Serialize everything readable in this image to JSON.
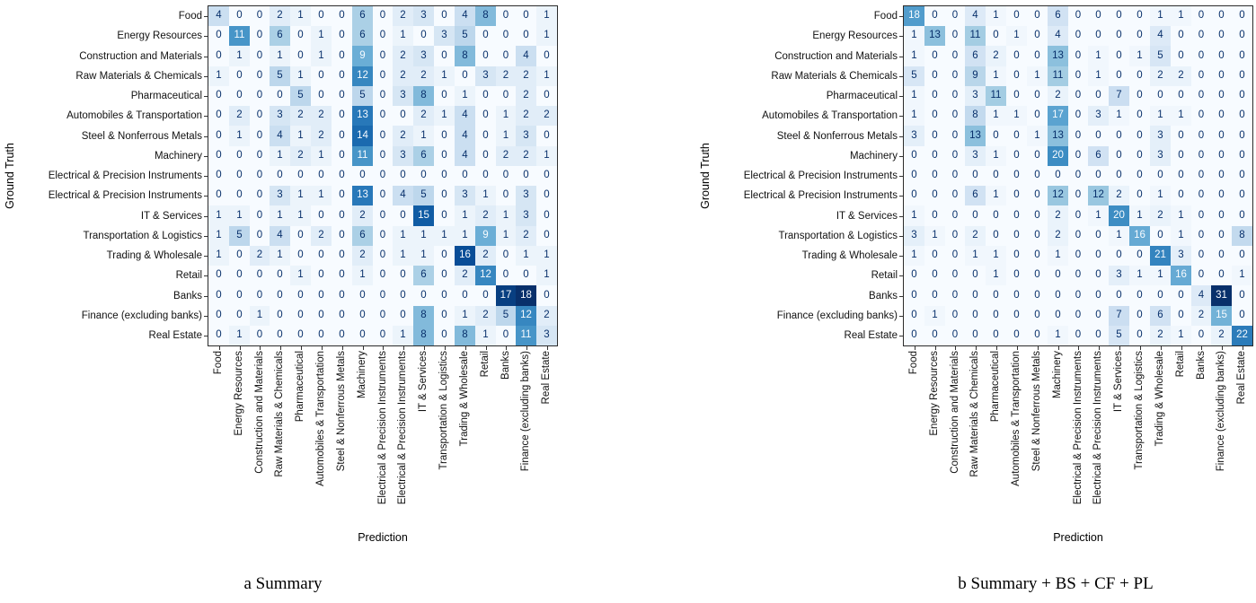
{
  "captions": {
    "a": "a Summary",
    "b": "b Summary + BS + CF + PL"
  },
  "colors": {
    "colormap_low": "#f7fbff",
    "colormap_high": "#08306b",
    "cell_text_low": "#08306b",
    "cell_text_high": "#f7fbff",
    "axis_spine": "#2b2b2b",
    "tick_label": "#111111"
  },
  "chart_data": [
    {
      "type": "heatmap",
      "title": "a Summary",
      "xlabel": "Prediction",
      "ylabel": "Ground Truth",
      "colormap": "Blues",
      "legend": "none",
      "grid": false,
      "vmin": 0,
      "vmax": 18,
      "categories": [
        "Food",
        "Energy Resources",
        "Construction and Materials",
        "Raw Materials & Chemicals",
        "Pharmaceutical",
        "Automobiles & Transportation",
        "Steel & Nonferrous Metals",
        "Machinery",
        "Electrical & Precision Instruments",
        "Electrical & Precision Instruments",
        "IT & Services",
        "Transportation & Logistics",
        "Trading & Wholesale",
        "Retail",
        "Banks",
        "Finance (excluding banks)",
        "Real Estate"
      ],
      "rows": [
        [
          4,
          0,
          0,
          2,
          1,
          0,
          0,
          6,
          0,
          2,
          3,
          0,
          4,
          8,
          0,
          0,
          1
        ],
        [
          0,
          11,
          0,
          6,
          0,
          1,
          0,
          6,
          0,
          1,
          0,
          3,
          5,
          0,
          0,
          0,
          1
        ],
        [
          0,
          1,
          0,
          1,
          0,
          1,
          0,
          9,
          0,
          2,
          3,
          0,
          8,
          0,
          0,
          4,
          0
        ],
        [
          1,
          0,
          0,
          5,
          1,
          0,
          0,
          12,
          0,
          2,
          2,
          1,
          0,
          3,
          2,
          2,
          1
        ],
        [
          0,
          0,
          0,
          0,
          5,
          0,
          0,
          5,
          0,
          3,
          8,
          0,
          1,
          0,
          0,
          2,
          0
        ],
        [
          0,
          2,
          0,
          3,
          2,
          2,
          0,
          13,
          0,
          0,
          2,
          1,
          4,
          0,
          1,
          2,
          2
        ],
        [
          0,
          1,
          0,
          4,
          1,
          2,
          0,
          14,
          0,
          2,
          1,
          0,
          4,
          0,
          1,
          3,
          0
        ],
        [
          0,
          0,
          0,
          1,
          2,
          1,
          0,
          11,
          0,
          3,
          6,
          0,
          4,
          0,
          2,
          2,
          1
        ],
        [
          0,
          0,
          0,
          0,
          0,
          0,
          0,
          0,
          0,
          0,
          0,
          0,
          0,
          0,
          0,
          0,
          0
        ],
        [
          0,
          0,
          0,
          3,
          1,
          1,
          0,
          13,
          0,
          4,
          5,
          0,
          3,
          1,
          0,
          3,
          0
        ],
        [
          1,
          1,
          0,
          1,
          1,
          0,
          0,
          2,
          0,
          0,
          15,
          0,
          1,
          2,
          1,
          3,
          0
        ],
        [
          1,
          5,
          0,
          4,
          0,
          2,
          0,
          6,
          0,
          1,
          1,
          1,
          1,
          9,
          1,
          2,
          0
        ],
        [
          1,
          0,
          2,
          1,
          0,
          0,
          0,
          2,
          0,
          1,
          1,
          0,
          16,
          2,
          0,
          1,
          1
        ],
        [
          0,
          0,
          0,
          0,
          1,
          0,
          0,
          1,
          0,
          0,
          6,
          0,
          2,
          12,
          0,
          0,
          1
        ],
        [
          0,
          0,
          0,
          0,
          0,
          0,
          0,
          0,
          0,
          0,
          0,
          0,
          0,
          0,
          17,
          18,
          0
        ],
        [
          0,
          0,
          1,
          0,
          0,
          0,
          0,
          0,
          0,
          0,
          8,
          0,
          1,
          2,
          5,
          12,
          2
        ],
        [
          0,
          1,
          0,
          0,
          0,
          0,
          0,
          0,
          0,
          1,
          8,
          0,
          8,
          1,
          0,
          11,
          3
        ]
      ]
    },
    {
      "type": "heatmap",
      "title": "b Summary + BS + CF + PL",
      "xlabel": "Prediction",
      "ylabel": "Ground Truth",
      "colormap": "Blues",
      "legend": "none",
      "grid": false,
      "vmin": 0,
      "vmax": 31,
      "categories": [
        "Food",
        "Energy Resources",
        "Construction and Materials",
        "Raw Materials & Chemicals",
        "Pharmaceutical",
        "Automobiles & Transportation",
        "Steel & Nonferrous Metals",
        "Machinery",
        "Electrical & Precision Instruments",
        "Electrical & Precision Instruments",
        "IT & Services",
        "Transportation & Logistics",
        "Trading & Wholesale",
        "Retail",
        "Banks",
        "Finance (excluding banks)",
        "Real Estate"
      ],
      "rows": [
        [
          18,
          0,
          0,
          4,
          1,
          0,
          0,
          6,
          0,
          0,
          0,
          0,
          1,
          1,
          0,
          0,
          0
        ],
        [
          1,
          13,
          0,
          11,
          0,
          1,
          0,
          4,
          0,
          0,
          0,
          0,
          4,
          0,
          0,
          0,
          0
        ],
        [
          1,
          0,
          0,
          6,
          2,
          0,
          0,
          13,
          0,
          1,
          0,
          1,
          5,
          0,
          0,
          0,
          0
        ],
        [
          5,
          0,
          0,
          9,
          1,
          0,
          1,
          11,
          0,
          1,
          0,
          0,
          2,
          2,
          0,
          0,
          0
        ],
        [
          1,
          0,
          0,
          3,
          11,
          0,
          0,
          2,
          0,
          0,
          7,
          0,
          0,
          0,
          0,
          0,
          0
        ],
        [
          1,
          0,
          0,
          8,
          1,
          1,
          0,
          17,
          0,
          3,
          1,
          0,
          1,
          1,
          0,
          0,
          0
        ],
        [
          3,
          0,
          0,
          13,
          0,
          0,
          1,
          13,
          0,
          0,
          0,
          0,
          3,
          0,
          0,
          0,
          0
        ],
        [
          0,
          0,
          0,
          3,
          1,
          0,
          0,
          20,
          0,
          6,
          0,
          0,
          3,
          0,
          0,
          0,
          0
        ],
        [
          0,
          0,
          0,
          0,
          0,
          0,
          0,
          0,
          0,
          0,
          0,
          0,
          0,
          0,
          0,
          0,
          0
        ],
        [
          0,
          0,
          0,
          6,
          1,
          0,
          0,
          12,
          0,
          12,
          2,
          0,
          1,
          0,
          0,
          0,
          0
        ],
        [
          1,
          0,
          0,
          0,
          0,
          0,
          0,
          2,
          0,
          1,
          20,
          1,
          2,
          1,
          0,
          0,
          0
        ],
        [
          3,
          1,
          0,
          2,
          0,
          0,
          0,
          2,
          0,
          0,
          1,
          16,
          0,
          1,
          0,
          0,
          8
        ],
        [
          1,
          0,
          0,
          1,
          1,
          0,
          0,
          1,
          0,
          0,
          0,
          0,
          21,
          3,
          0,
          0,
          0
        ],
        [
          0,
          0,
          0,
          0,
          1,
          0,
          0,
          0,
          0,
          0,
          3,
          1,
          1,
          16,
          0,
          0,
          1
        ],
        [
          0,
          0,
          0,
          0,
          0,
          0,
          0,
          0,
          0,
          0,
          0,
          0,
          0,
          0,
          4,
          31,
          0
        ],
        [
          0,
          1,
          0,
          0,
          0,
          0,
          0,
          0,
          0,
          0,
          7,
          0,
          6,
          0,
          2,
          15,
          0
        ],
        [
          0,
          0,
          0,
          0,
          0,
          0,
          0,
          1,
          0,
          0,
          5,
          0,
          2,
          1,
          0,
          2,
          22
        ]
      ]
    }
  ]
}
